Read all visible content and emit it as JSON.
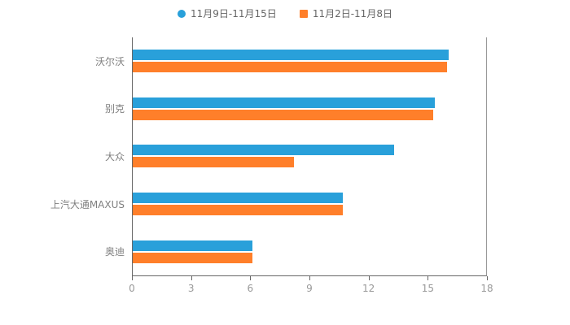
{
  "chart_data": {
    "type": "bar",
    "orientation": "horizontal",
    "title": "",
    "xlabel": "",
    "ylabel": "",
    "categories": [
      "沃尔沃",
      "别克",
      "大众",
      "上汽大通MAXUS",
      "奥迪"
    ],
    "series": [
      {
        "name": "11月9日-11月15日",
        "marker": "circle",
        "color": "#29A0DA",
        "values": [
          16.1,
          15.4,
          13.3,
          10.7,
          6.1
        ]
      },
      {
        "name": "11月2日-11月8日",
        "marker": "square",
        "color": "#FF7F2A",
        "values": [
          16.0,
          15.3,
          8.2,
          10.7,
          6.1
        ]
      }
    ],
    "xlim": [
      0,
      18
    ],
    "xticks": [
      0,
      3,
      6,
      9,
      12,
      15,
      18
    ],
    "legend_position": "top",
    "grid": false,
    "colors": {
      "axis": "#666666",
      "tick_label": "#999999",
      "category_label": "#808080",
      "background": "#ffffff"
    }
  }
}
